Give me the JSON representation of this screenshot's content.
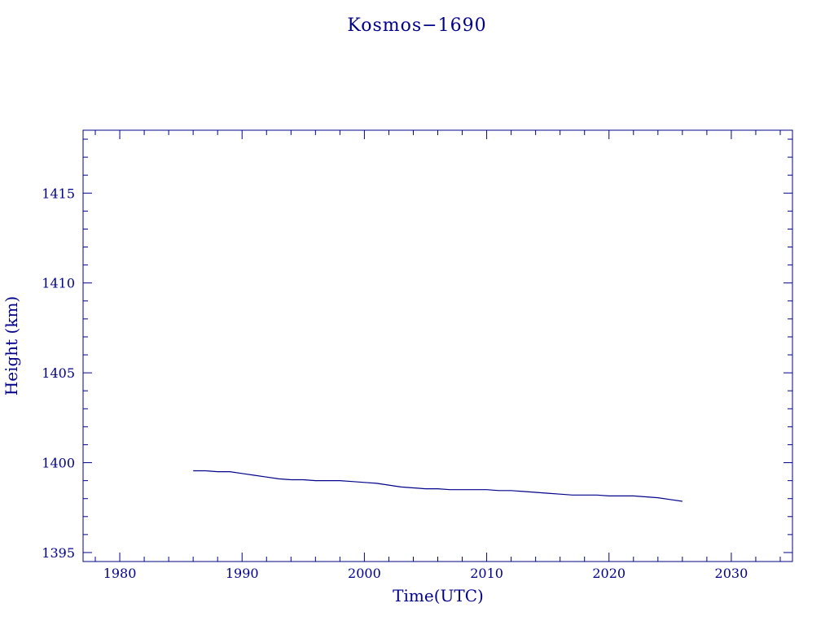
{
  "chart_data": {
    "type": "line",
    "title": "Kosmos−1690",
    "xlabel": "Time(UTC)",
    "ylabel": "Height (km)",
    "xlim": [
      1977,
      2035
    ],
    "ylim": [
      1394.5,
      1418.5
    ],
    "x_ticks": [
      1980,
      1990,
      2000,
      2010,
      2020,
      2030
    ],
    "y_ticks": [
      1395,
      1400,
      1405,
      1410,
      1415
    ],
    "x_minor_step": 2,
    "y_minor_step": 1,
    "grid": false,
    "color": "#00008b",
    "series": [
      {
        "x": [
          1986.0,
          1987.0,
          1988.0,
          1989.0,
          1990.0,
          1991.0,
          1992.0,
          1993.0,
          1994.0,
          1995.0,
          1996.0,
          1997.0,
          1998.0,
          1999.0,
          2000.0,
          2001.0,
          2002.0,
          2003.0,
          2004.0,
          2005.0,
          2006.0,
          2007.0,
          2008.0,
          2009.0,
          2010.0,
          2011.0,
          2012.0,
          2013.0,
          2014.0,
          2015.0,
          2016.0,
          2017.0,
          2018.0,
          2019.0,
          2020.0,
          2021.0,
          2022.0,
          2023.0,
          2024.0,
          2025.0,
          2026.0
        ],
        "y": [
          1399.55,
          1399.55,
          1399.5,
          1399.5,
          1399.4,
          1399.3,
          1399.2,
          1399.1,
          1399.05,
          1399.05,
          1399.0,
          1399.0,
          1399.0,
          1398.95,
          1398.9,
          1398.85,
          1398.75,
          1398.65,
          1398.6,
          1398.55,
          1398.55,
          1398.5,
          1398.5,
          1398.5,
          1398.5,
          1398.45,
          1398.45,
          1398.4,
          1398.35,
          1398.3,
          1398.25,
          1398.2,
          1398.2,
          1398.2,
          1398.15,
          1398.15,
          1398.15,
          1398.1,
          1398.05,
          1397.95,
          1397.85
        ]
      }
    ]
  }
}
